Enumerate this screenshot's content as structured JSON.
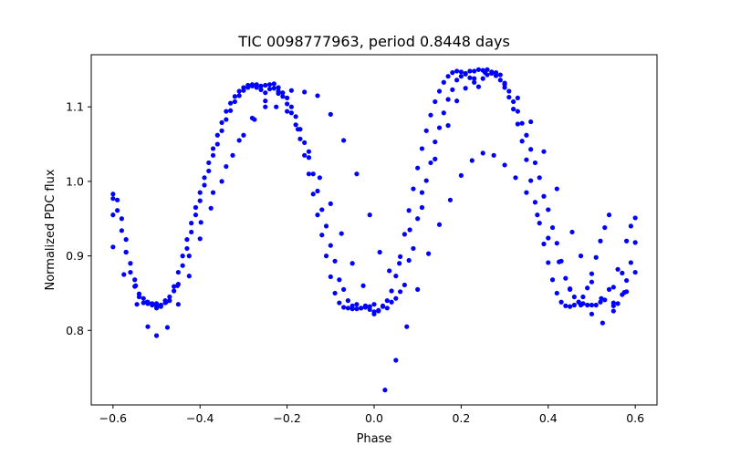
{
  "chart_data": {
    "type": "scatter",
    "title": "TIC 0098777963, period 0.8448 days",
    "xlabel": "Phase",
    "ylabel": "Normalized PDC flux",
    "xlim": [
      -0.65,
      0.65
    ],
    "ylim": [
      0.7,
      1.17
    ],
    "xticks": [
      -0.6,
      -0.4,
      -0.2,
      0.0,
      0.2,
      0.4,
      0.6
    ],
    "xtick_labels": [
      "−0.6",
      "−0.4",
      "−0.2",
      "0.0",
      "0.2",
      "0.4",
      "0.6"
    ],
    "yticks": [
      0.8,
      0.9,
      1.0,
      1.1
    ],
    "ytick_labels": [
      "0.8",
      "0.9",
      "1.0",
      "1.1"
    ],
    "grid": false,
    "marker_color": "#0000ff",
    "series": [
      {
        "name": "",
        "x": [
          -0.6,
          -0.59,
          -0.58,
          -0.57,
          -0.56,
          -0.55,
          -0.54,
          -0.53,
          -0.52,
          -0.51,
          -0.5,
          -0.49,
          -0.48,
          -0.47,
          -0.46,
          -0.45,
          -0.44,
          -0.43,
          -0.42,
          -0.41,
          -0.4,
          -0.39,
          -0.38,
          -0.37,
          -0.36,
          -0.35,
          -0.34,
          -0.33,
          -0.32,
          -0.31,
          -0.3,
          -0.29,
          -0.28,
          -0.27,
          -0.26,
          -0.25,
          -0.24,
          -0.23,
          -0.22,
          -0.21,
          -0.2,
          -0.19,
          -0.18,
          -0.17,
          -0.16,
          -0.15,
          -0.14,
          -0.13,
          -0.12,
          -0.11,
          -0.1,
          -0.09,
          -0.08,
          -0.07,
          -0.06,
          -0.05,
          -0.04,
          -0.03,
          -0.02,
          -0.01,
          0.0,
          0.01,
          0.02,
          0.03,
          0.04,
          0.05,
          0.06,
          0.07,
          0.08,
          0.09,
          0.1,
          0.11,
          0.12,
          0.13,
          0.14,
          0.15,
          0.16,
          0.17,
          0.18,
          0.19,
          0.2,
          0.21,
          0.22,
          0.23,
          0.24,
          0.25,
          0.26,
          0.27,
          0.28,
          0.29,
          0.3,
          0.31,
          0.32,
          0.33,
          0.34,
          0.35,
          0.36,
          0.37,
          0.38,
          0.39,
          0.4,
          0.41,
          0.42,
          0.43,
          0.44,
          0.45,
          0.46,
          0.47,
          0.48,
          0.49,
          0.5,
          0.51,
          0.52,
          0.53,
          0.54,
          0.55,
          0.56,
          0.57,
          0.58,
          0.59,
          0.6,
          -0.6,
          -0.58,
          -0.56,
          -0.54,
          -0.52,
          -0.5,
          -0.48,
          -0.46,
          -0.44,
          -0.42,
          -0.4,
          -0.38,
          -0.36,
          -0.34,
          -0.32,
          -0.3,
          -0.28,
          -0.26,
          -0.24,
          -0.22,
          -0.2,
          -0.18,
          -0.16,
          -0.14,
          -0.12,
          -0.1,
          -0.08,
          -0.06,
          -0.04,
          -0.02,
          0.0,
          0.02,
          0.04,
          0.06,
          0.08,
          0.1,
          0.12,
          0.14,
          0.16,
          0.18,
          0.2,
          0.22,
          0.24,
          0.26,
          0.28,
          0.3,
          0.32,
          0.34,
          0.36,
          0.38,
          0.4,
          0.42,
          0.44,
          0.46,
          0.48,
          0.5,
          0.52,
          0.54,
          0.56,
          0.58,
          0.6,
          -0.59,
          -0.57,
          -0.55,
          -0.53,
          -0.51,
          -0.49,
          -0.47,
          -0.45,
          -0.43,
          -0.41,
          -0.39,
          -0.37,
          -0.35,
          -0.33,
          -0.31,
          -0.29,
          -0.27,
          -0.25,
          -0.23,
          -0.21,
          -0.19,
          -0.17,
          -0.15,
          -0.13,
          -0.11,
          -0.09,
          -0.07,
          -0.05,
          -0.03,
          -0.01,
          0.01,
          0.03,
          0.05,
          0.07,
          0.09,
          0.11,
          0.13,
          0.15,
          0.17,
          0.19,
          0.21,
          0.23,
          0.25,
          0.27,
          0.29,
          0.31,
          0.33,
          0.35,
          0.37,
          0.39,
          0.41,
          0.43,
          0.45,
          0.47,
          0.49,
          0.51,
          0.53,
          0.55,
          0.57,
          0.59,
          -0.6,
          -0.575,
          -0.545,
          -0.52,
          -0.5,
          -0.475,
          -0.45,
          -0.425,
          -0.4,
          -0.375,
          -0.35,
          -0.325,
          -0.3,
          -0.275,
          -0.25,
          -0.225,
          -0.2,
          -0.175,
          -0.15,
          -0.125,
          -0.1,
          -0.075,
          -0.05,
          -0.025,
          0.0,
          0.025,
          0.05,
          0.075,
          0.1,
          0.125,
          0.15,
          0.175,
          0.2,
          0.225,
          0.25,
          0.275,
          0.3,
          0.325,
          0.35,
          0.375,
          0.4,
          0.425,
          0.45,
          0.475,
          0.5,
          0.525,
          0.55,
          0.575,
          0.6,
          -0.6,
          -0.57,
          -0.548,
          -0.522,
          -0.5,
          -0.478,
          -0.452,
          -0.425,
          -0.398,
          -0.37,
          -0.34,
          -0.31,
          -0.28,
          -0.25,
          -0.22,
          -0.19,
          -0.16,
          -0.13,
          -0.1,
          -0.07,
          -0.04,
          -0.01,
          0.013,
          0.035,
          0.058,
          0.082,
          0.11,
          0.14,
          0.17,
          0.19,
          0.21,
          0.23,
          0.255,
          0.28,
          0.3,
          0.33,
          0.36,
          0.39,
          0.42,
          0.455,
          0.475,
          0.5,
          0.522,
          0.55,
          0.58
        ],
        "y": [
          0.983,
          0.961,
          0.934,
          0.905,
          0.878,
          0.859,
          0.845,
          0.837,
          0.836,
          0.834,
          0.833,
          0.834,
          0.837,
          0.845,
          0.859,
          0.878,
          0.9,
          0.922,
          0.944,
          0.965,
          0.985,
          1.005,
          1.025,
          1.044,
          1.062,
          1.079,
          1.094,
          1.105,
          1.114,
          1.121,
          1.126,
          1.129,
          1.128,
          1.126,
          1.123,
          1.119,
          1.124,
          1.125,
          1.121,
          1.114,
          1.104,
          1.092,
          1.076,
          1.057,
          1.035,
          1.01,
          0.983,
          0.955,
          0.928,
          0.9,
          0.872,
          0.85,
          0.837,
          0.831,
          0.83,
          0.829,
          0.829,
          0.83,
          0.831,
          0.832,
          0.825,
          0.827,
          0.832,
          0.84,
          0.853,
          0.873,
          0.899,
          0.929,
          0.961,
          0.99,
          1.018,
          1.044,
          1.068,
          1.089,
          1.107,
          1.121,
          1.133,
          1.141,
          1.146,
          1.148,
          1.147,
          1.144,
          1.139,
          1.133,
          1.127,
          1.138,
          1.143,
          1.145,
          1.142,
          1.136,
          1.126,
          1.113,
          1.097,
          1.077,
          1.054,
          1.029,
          1.001,
          0.972,
          0.944,
          0.916,
          0.891,
          0.868,
          0.85,
          0.838,
          0.833,
          0.832,
          0.834,
          0.838,
          0.845,
          0.857,
          0.876,
          0.898,
          0.92,
          0.938,
          0.955,
          0.833,
          0.836,
          0.848,
          0.867,
          0.891,
          0.918,
          0.977,
          0.95,
          0.89,
          0.849,
          0.838,
          0.836,
          0.84,
          0.853,
          0.887,
          0.932,
          0.974,
          1.014,
          1.05,
          1.083,
          1.107,
          1.122,
          1.13,
          1.128,
          1.13,
          1.126,
          1.112,
          1.087,
          1.052,
          1.01,
          0.962,
          0.914,
          0.868,
          0.84,
          0.835,
          0.833,
          0.822,
          0.833,
          0.838,
          0.852,
          0.894,
          0.95,
          1.001,
          1.053,
          1.092,
          1.123,
          1.141,
          1.148,
          1.15,
          1.15,
          1.146,
          1.132,
          1.107,
          1.078,
          1.043,
          1.005,
          0.962,
          0.917,
          0.87,
          0.845,
          0.836,
          0.834,
          0.838,
          0.855,
          0.882,
          0.92,
          0.951,
          0.975,
          0.922,
          0.868,
          0.843,
          0.836,
          0.832,
          0.84,
          0.862,
          0.91,
          0.955,
          0.995,
          1.035,
          1.068,
          1.095,
          1.115,
          1.126,
          1.13,
          1.129,
          1.131,
          1.119,
          1.1,
          1.07,
          1.032,
          0.987,
          0.94,
          0.893,
          0.855,
          0.833,
          0.83,
          0.828,
          0.826,
          0.83,
          0.843,
          0.861,
          0.91,
          0.965,
          1.025,
          1.072,
          1.11,
          1.136,
          1.145,
          1.148,
          1.149,
          1.147,
          1.143,
          1.121,
          1.094,
          1.062,
          1.025,
          0.98,
          0.938,
          0.893,
          0.855,
          0.838,
          0.834,
          0.834,
          0.841,
          0.858,
          0.877,
          0.94,
          0.912,
          0.875,
          0.835,
          0.805,
          0.793,
          0.804,
          0.835,
          0.873,
          0.923,
          0.964,
          1.0,
          1.035,
          1.062,
          1.083,
          1.1,
          1.1,
          1.094,
          1.07,
          1.04,
          1.005,
          0.97,
          0.93,
          0.89,
          0.86,
          0.835,
          0.72,
          0.76,
          0.805,
          0.855,
          0.903,
          0.942,
          0.975,
          1.008,
          1.028,
          1.038,
          1.035,
          1.022,
          1.005,
          0.985,
          0.955,
          0.924,
          0.892,
          0.856,
          0.834,
          0.822,
          0.81,
          0.826,
          0.851,
          0.878,
          0.955,
          0.905,
          0.86,
          0.838,
          0.83,
          0.838,
          0.86,
          0.9,
          0.945,
          0.985,
          1.02,
          1.055,
          1.085,
          1.108,
          1.118,
          1.122,
          1.12,
          1.115,
          1.09,
          1.055,
          1.01,
          0.955,
          0.905,
          0.88,
          0.89,
          0.935,
          0.985,
          1.03,
          1.075,
          1.108,
          1.125,
          1.138,
          1.146,
          1.142,
          1.13,
          1.112,
          1.08,
          1.04,
          0.99,
          0.932,
          0.9,
          0.865,
          0.843,
          0.837,
          0.852
        ]
      }
    ]
  }
}
